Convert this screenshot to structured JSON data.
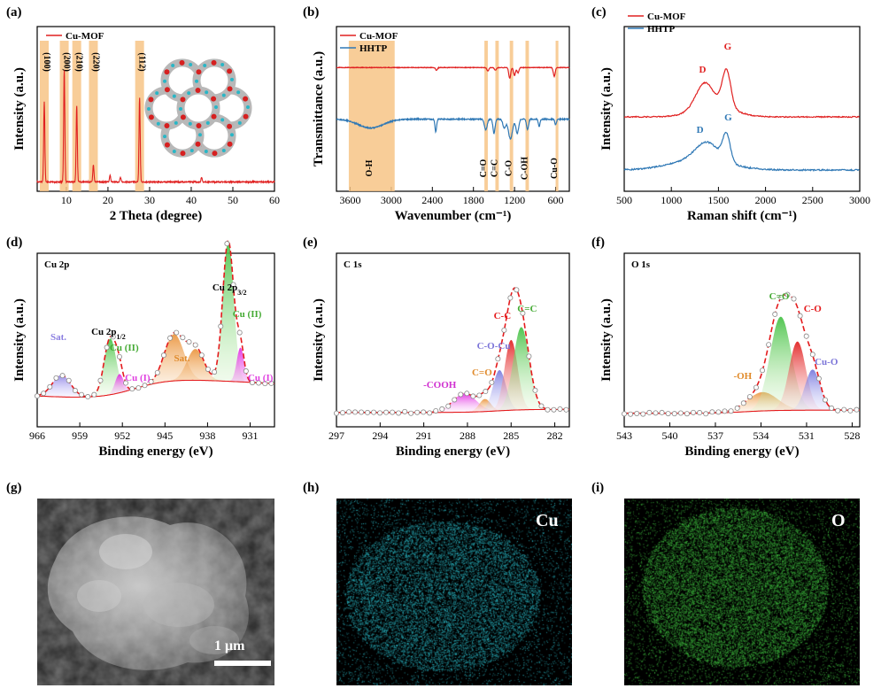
{
  "panels": {
    "a": "(a)",
    "b": "(b)",
    "c": "(c)",
    "d": "(d)",
    "e": "(e)",
    "f": "(f)",
    "g": "(g)",
    "h": "(h)",
    "i": "(i)"
  },
  "colors": {
    "red": "#e02020",
    "blue": "#2f78b5",
    "band": "#f7c486",
    "cu_green": "#8fd46a",
    "ox_red": "#e41a1c",
    "violet": "#9d8de0",
    "orange": "#f0a050",
    "magenta": "#e040e0",
    "cyan_map": "#2ab3c0",
    "green_map": "#3db53d"
  },
  "chart_data": [
    {
      "id": "a",
      "type": "line",
      "title": "",
      "xlabel": "2 Theta (degree)",
      "ylabel": "Intensity (a.u.)",
      "xlim": [
        3,
        60
      ],
      "xticks": [
        10,
        20,
        30,
        40,
        50,
        60
      ],
      "legend": [
        "Cu-MOF"
      ],
      "series": [
        {
          "name": "Cu-MOF",
          "peaks": [
            [
              4.7,
              0.72
            ],
            [
              9.5,
              1.0
            ],
            [
              12.5,
              0.68
            ],
            [
              16.5,
              0.15
            ],
            [
              27.6,
              0.75
            ],
            [
              20.5,
              0.06
            ],
            [
              23.0,
              0.04
            ],
            [
              42.5,
              0.04
            ]
          ]
        }
      ],
      "bands": [
        {
          "x": 4.7,
          "label": "(100)"
        },
        {
          "x": 9.5,
          "label": "(200)"
        },
        {
          "x": 12.5,
          "label": "(210)"
        },
        {
          "x": 16.5,
          "label": "(220)"
        },
        {
          "x": 27.6,
          "label": "(112)"
        }
      ]
    },
    {
      "id": "b",
      "type": "line",
      "xlabel": "Wavenumber (cm⁻¹)",
      "ylabel": "Transmittance (a.u.)",
      "xlim": [
        3800,
        400
      ],
      "xticks": [
        3600,
        3000,
        2400,
        1800,
        1200,
        600
      ],
      "legend": [
        "Cu-MOF",
        "HHTP"
      ],
      "bands": [
        {
          "label": "O-H",
          "x0": 3620,
          "x1": 2950
        },
        {
          "label": "C=O",
          "x0": 1640,
          "x1": 1590
        },
        {
          "label": "C=C",
          "x0": 1480,
          "x1": 1430
        },
        {
          "label": "C-O",
          "x0": 1270,
          "x1": 1220
        },
        {
          "label": "C-OH",
          "x0": 1040,
          "x1": 990
        },
        {
          "label": "Cu-O",
          "x0": 600,
          "x1": 560
        }
      ]
    },
    {
      "id": "c",
      "type": "line",
      "xlabel": "Raman shift (cm⁻¹)",
      "ylabel": "Intensity (a.u.)",
      "xlim": [
        500,
        3000
      ],
      "xticks": [
        500,
        1000,
        1500,
        2000,
        2500,
        3000
      ],
      "legend": [
        "Cu-MOF",
        "HHTP"
      ],
      "annotations": [
        {
          "text": "D",
          "x": 1350
        },
        {
          "text": "G",
          "x": 1580
        }
      ]
    },
    {
      "id": "d",
      "type": "line",
      "title": "Cu 2p",
      "xlabel": "Binding energy (eV)",
      "ylabel": "Intensity (a.u.)",
      "xlim": [
        966,
        927
      ],
      "xticks": [
        966,
        959,
        952,
        945,
        938,
        931
      ],
      "components": [
        {
          "label": "Sat.",
          "center": 962.0,
          "height": 0.14,
          "width": 1.5
        },
        {
          "label": "Cu (II)",
          "center": 954.0,
          "height": 0.36,
          "width": 1.0
        },
        {
          "label": "Cu (I)",
          "center": 952.5,
          "height": 0.12,
          "width": 0.7
        },
        {
          "label": "Sat.",
          "center": 943.5,
          "height": 0.3,
          "width": 1.6
        },
        {
          "label": "Sat.",
          "center": 940.0,
          "height": 0.2,
          "width": 1.4
        },
        {
          "label": "Cu (II)",
          "center": 934.6,
          "height": 0.9,
          "width": 0.9
        },
        {
          "label": "Cu (I)",
          "center": 932.6,
          "height": 0.22,
          "width": 0.6
        }
      ],
      "labels": {
        "sat": "Sat.",
        "cu2p12": "Cu 2p",
        "sub12": "1/2",
        "cu2p32": "Cu 2p",
        "sub32": "3/2",
        "cu2": "Cu (II)",
        "cu1": "Cu (I)"
      }
    },
    {
      "id": "e",
      "type": "line",
      "title": "C 1s",
      "xlabel": "Binding energy (eV)",
      "ylabel": "Intensity (a.u.)",
      "xlim": [
        297,
        281
      ],
      "xticks": [
        297,
        294,
        291,
        288,
        285,
        282
      ],
      "components": [
        {
          "label": "-COOH",
          "center": 288.2,
          "height": 0.12,
          "width": 0.8
        },
        {
          "label": "C=O",
          "center": 286.8,
          "height": 0.08,
          "width": 0.4
        },
        {
          "label": "C-O-Cu",
          "center": 285.8,
          "height": 0.26,
          "width": 0.45
        },
        {
          "label": "C-C",
          "center": 285.0,
          "height": 0.45,
          "width": 0.45
        },
        {
          "label": "C=C",
          "center": 284.3,
          "height": 0.53,
          "width": 0.55
        }
      ]
    },
    {
      "id": "f",
      "type": "line",
      "title": "O 1s",
      "xlabel": "Binding energy (eV)",
      "ylabel": "Intensity (a.u.)",
      "xlim": [
        543,
        527.5
      ],
      "xticks": [
        543,
        540,
        537,
        534,
        531,
        528
      ],
      "components": [
        {
          "label": "-OH",
          "center": 533.9,
          "height": 0.12,
          "width": 1.0
        },
        {
          "label": "C=O",
          "center": 532.7,
          "height": 0.6,
          "width": 0.7
        },
        {
          "label": "C-O",
          "center": 531.6,
          "height": 0.44,
          "width": 0.55
        },
        {
          "label": "Cu-O",
          "center": 530.6,
          "height": 0.26,
          "width": 0.5
        }
      ]
    }
  ],
  "images": {
    "scale_bar": "1 μm",
    "map_cu": "Cu",
    "map_o": "O"
  }
}
